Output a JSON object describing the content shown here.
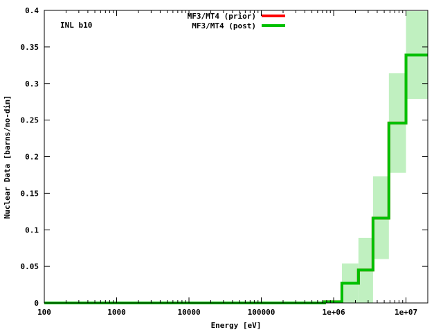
{
  "chart_data": {
    "type": "line",
    "title": "",
    "annotation": "INL b10",
    "xlabel": "Energy [eV]",
    "ylabel": "Nuclear Data [barns/no-dim]",
    "xscale": "log",
    "xlim": [
      100,
      20000000
    ],
    "ylim": [
      0,
      0.4
    ],
    "x_tick_labels": [
      "100",
      "1000",
      "10000",
      "100000",
      "1e+06",
      "1e+07"
    ],
    "x_tick_values": [
      100,
      1000,
      10000,
      100000,
      1000000,
      10000000
    ],
    "y_tick_labels": [
      "0",
      "0.05",
      "0.1",
      "0.15",
      "0.2",
      "0.25",
      "0.3",
      "0.35",
      "0.4"
    ],
    "y_tick_values": [
      0,
      0.05,
      0.1,
      0.15,
      0.2,
      0.25,
      0.3,
      0.35,
      0.4
    ],
    "grid": false,
    "legend_position": "top-center",
    "series": [
      {
        "name": "MF3/MT4 (prior)",
        "color": "#ff0000",
        "edges": [
          100,
          750000,
          1300000,
          2200000,
          3500000,
          5800000,
          10000000,
          20000000
        ],
        "values": [
          0,
          0.0015,
          0.027,
          0.045,
          0.116,
          0.246,
          0.339
        ]
      },
      {
        "name": "MF3/MT4 (post)",
        "color": "#00c000",
        "band_color": "#c0f0c0",
        "edges": [
          100,
          750000,
          1300000,
          2200000,
          3500000,
          5800000,
          10000000,
          20000000
        ],
        "values": [
          0,
          0.0015,
          0.027,
          0.045,
          0.116,
          0.246,
          0.339
        ],
        "band_lower": [
          0,
          0,
          0,
          0,
          0.06,
          0.178,
          0.279
        ],
        "band_upper": [
          0,
          0.003,
          0.054,
          0.089,
          0.173,
          0.314,
          0.399
        ]
      }
    ]
  }
}
